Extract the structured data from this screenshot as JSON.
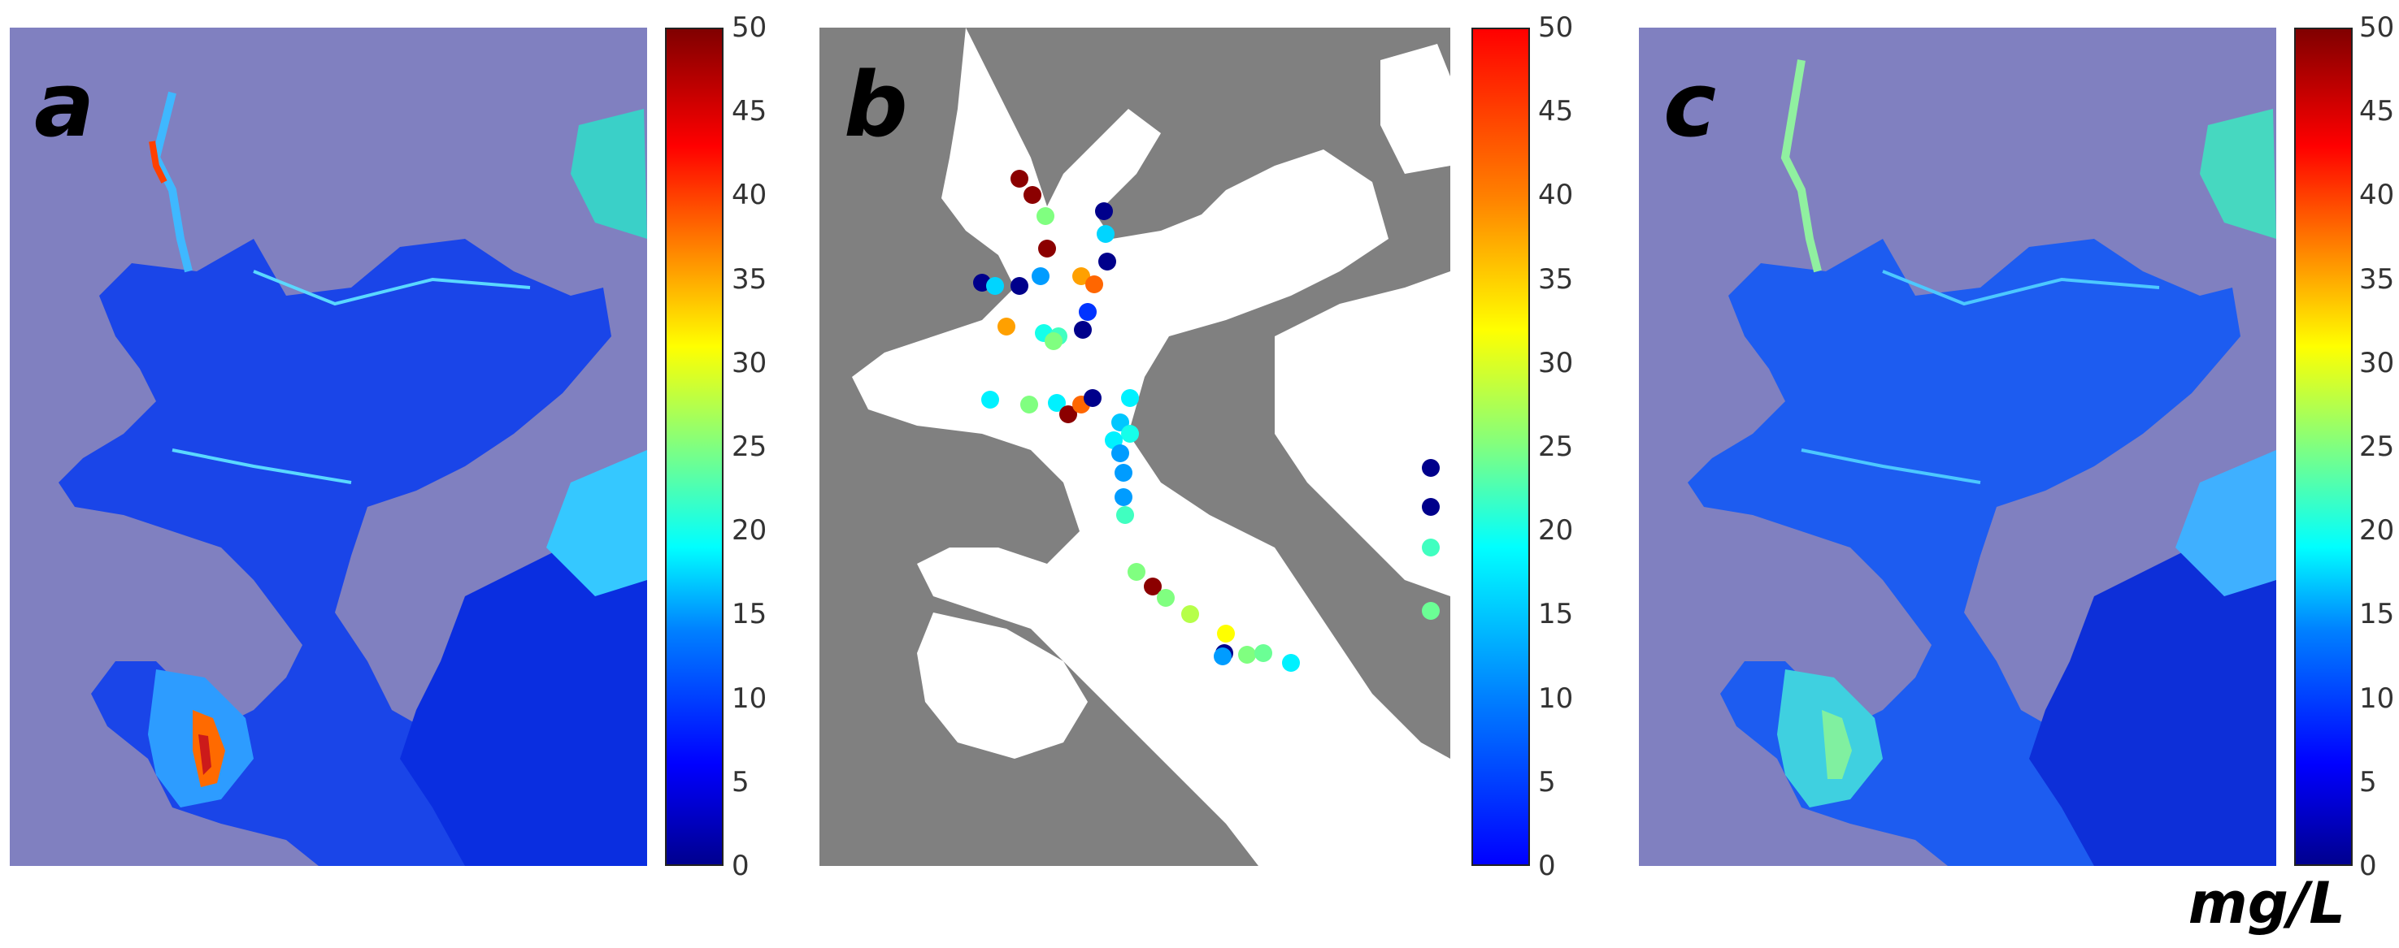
{
  "panels": [
    {
      "label": "a",
      "type": "concentration-map"
    },
    {
      "label": "b",
      "type": "station-map"
    },
    {
      "label": "c",
      "type": "concentration-map"
    }
  ],
  "colorbar": {
    "ticks": [
      "50",
      "45",
      "40",
      "35",
      "30",
      "25",
      "20",
      "15",
      "10",
      "5",
      "0"
    ],
    "range": [
      0,
      50
    ],
    "colormap": "jet"
  },
  "unit": "mg/L",
  "colors": {
    "land_ab": "#8080c0",
    "land_b": "#808080",
    "water_b": "#ffffff",
    "water_low": "#0a2ee0",
    "water_mid": "#1d6cff"
  },
  "stations": [
    {
      "v": 48
    },
    {
      "v": 47
    },
    {
      "v": 25
    },
    {
      "v": 48
    },
    {
      "v": 2
    },
    {
      "v": 16
    },
    {
      "v": 2
    },
    {
      "v": 2
    },
    {
      "v": 16
    },
    {
      "v": 2
    },
    {
      "v": 12
    },
    {
      "v": 38
    },
    {
      "v": 42
    },
    {
      "v": 4
    },
    {
      "v": 2
    },
    {
      "v": 38
    },
    {
      "v": 20
    },
    {
      "v": 22
    },
    {
      "v": 25
    },
    {
      "v": 18
    },
    {
      "v": 25
    },
    {
      "v": 18
    },
    {
      "v": 48
    },
    {
      "v": 42
    },
    {
      "v": 2
    },
    {
      "v": 18
    },
    {
      "v": 15
    },
    {
      "v": 20
    },
    {
      "v": 18
    },
    {
      "v": 12
    },
    {
      "v": 12
    },
    {
      "v": 12
    },
    {
      "v": 22
    },
    {
      "v": 25
    },
    {
      "v": 48
    },
    {
      "v": 25
    },
    {
      "v": 28
    },
    {
      "v": 32
    },
    {
      "v": 2
    },
    {
      "v": 12
    },
    {
      "v": 25
    },
    {
      "v": 24
    },
    {
      "v": 18
    },
    {
      "v": 2
    },
    {
      "v": 2
    },
    {
      "v": 22
    },
    {
      "v": 24
    }
  ]
}
